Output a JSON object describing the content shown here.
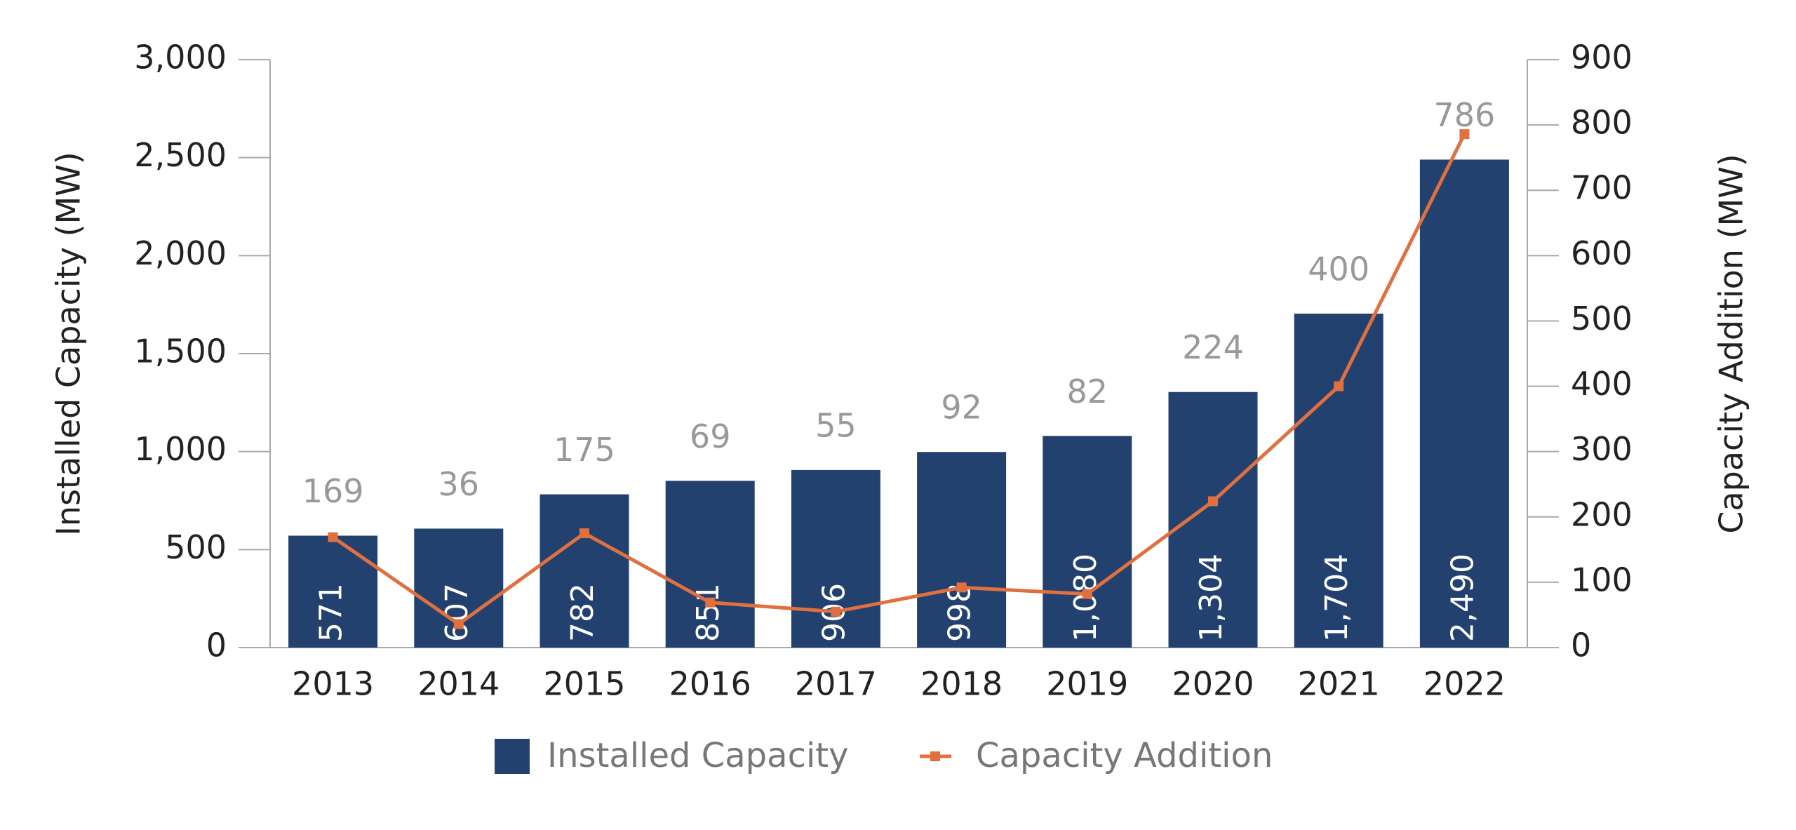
{
  "chart_data": {
    "type": "bar-line",
    "categories": [
      "2013",
      "2014",
      "2015",
      "2016",
      "2017",
      "2018",
      "2019",
      "2020",
      "2021",
      "2022"
    ],
    "y_label": "Installed Capacity (MW)",
    "y2_label": "Capacity Addition (MW)",
    "ylim": [
      0,
      3000
    ],
    "yticks": [
      0,
      500,
      {
        "value": 1000,
        "label": "1,000"
      },
      {
        "value": 1500,
        "label": "1,500"
      },
      {
        "value": 2000,
        "label": "2,000"
      },
      {
        "value": 2500,
        "label": "2,500"
      },
      {
        "value": 3000,
        "label": "3,000"
      }
    ],
    "y2lim": [
      0,
      900
    ],
    "y2ticks": [
      0,
      100,
      200,
      300,
      400,
      500,
      600,
      700,
      800,
      900
    ],
    "series": [
      {
        "name": "Installed Capacity",
        "type": "bar",
        "color": "#23416f",
        "axis": "y",
        "values": [
          571,
          607,
          782,
          851,
          906,
          998,
          1080,
          1304,
          1704,
          2490
        ],
        "value_labels": [
          "571",
          "607",
          "782",
          "851",
          "906",
          "998",
          "1,080",
          "1,304",
          "1,704",
          "2,490"
        ]
      },
      {
        "name": "Capacity Addition",
        "type": "line",
        "color": "#e07040",
        "axis": "y2",
        "values": [
          169,
          36,
          175,
          69,
          55,
          92,
          82,
          224,
          400,
          786
        ]
      }
    ]
  }
}
